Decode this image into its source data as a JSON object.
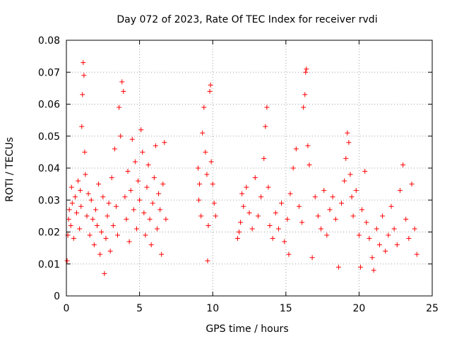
{
  "chart_data": {
    "type": "scatter",
    "title": "Day 072 of 2023, Rate Of TEC Index for receiver rvdi",
    "xlabel": "GPS time / hours",
    "ylabel": "ROTI / TECUs",
    "xlim": [
      0,
      25
    ],
    "ylim": [
      0,
      0.08
    ],
    "x_ticks": [
      0,
      5,
      10,
      15,
      20,
      25
    ],
    "x_tick_labels": [
      "0",
      "5",
      "10",
      "15",
      "20",
      "25"
    ],
    "y_ticks": [
      0,
      0.01,
      0.02,
      0.03,
      0.04,
      0.05,
      0.06,
      0.07,
      0.08
    ],
    "y_tick_labels": [
      "0",
      "0.01",
      "0.02",
      "0.03",
      "0.04",
      "0.05",
      "0.06",
      "0.07",
      "0.08"
    ],
    "grid": true,
    "marker": "plus",
    "color": "#ff0000",
    "series": [
      {
        "values_xy": [
          [
            0.05,
            0.011
          ],
          [
            0.1,
            0.019
          ],
          [
            0.15,
            0.024
          ],
          [
            0.2,
            0.027
          ],
          [
            0.3,
            0.022
          ],
          [
            0.35,
            0.034
          ],
          [
            0.4,
            0.029
          ],
          [
            0.5,
            0.018
          ],
          [
            0.6,
            0.031
          ],
          [
            0.7,
            0.026
          ],
          [
            0.8,
            0.036
          ],
          [
            0.9,
            0.021
          ],
          [
            0.95,
            0.033
          ],
          [
            1.0,
            0.028
          ],
          [
            1.05,
            0.053
          ],
          [
            1.1,
            0.063
          ],
          [
            1.15,
            0.073
          ],
          [
            1.2,
            0.069
          ],
          [
            1.25,
            0.045
          ],
          [
            1.3,
            0.038
          ],
          [
            1.4,
            0.025
          ],
          [
            1.5,
            0.032
          ],
          [
            1.6,
            0.019
          ],
          [
            1.7,
            0.03
          ],
          [
            1.8,
            0.024
          ],
          [
            1.9,
            0.016
          ],
          [
            2.0,
            0.027
          ],
          [
            2.1,
            0.022
          ],
          [
            2.2,
            0.035
          ],
          [
            2.3,
            0.013
          ],
          [
            2.4,
            0.02
          ],
          [
            2.5,
            0.031
          ],
          [
            2.6,
            0.007
          ],
          [
            2.7,
            0.018
          ],
          [
            2.8,
            0.025
          ],
          [
            2.9,
            0.029
          ],
          [
            3.0,
            0.014
          ],
          [
            3.1,
            0.037
          ],
          [
            3.2,
            0.022
          ],
          [
            3.3,
            0.046
          ],
          [
            3.4,
            0.028
          ],
          [
            3.5,
            0.019
          ],
          [
            3.6,
            0.059
          ],
          [
            3.7,
            0.05
          ],
          [
            3.8,
            0.067
          ],
          [
            3.9,
            0.064
          ],
          [
            4.0,
            0.031
          ],
          [
            4.1,
            0.024
          ],
          [
            4.2,
            0.039
          ],
          [
            4.3,
            0.017
          ],
          [
            4.4,
            0.033
          ],
          [
            4.5,
            0.049
          ],
          [
            4.6,
            0.027
          ],
          [
            4.7,
            0.042
          ],
          [
            4.8,
            0.021
          ],
          [
            4.9,
            0.036
          ],
          [
            5.0,
            0.03
          ],
          [
            5.1,
            0.052
          ],
          [
            5.2,
            0.045
          ],
          [
            5.3,
            0.026
          ],
          [
            5.4,
            0.019
          ],
          [
            5.5,
            0.034
          ],
          [
            5.6,
            0.041
          ],
          [
            5.7,
            0.024
          ],
          [
            5.8,
            0.016
          ],
          [
            5.9,
            0.029
          ],
          [
            6.0,
            0.037
          ],
          [
            6.1,
            0.047
          ],
          [
            6.2,
            0.021
          ],
          [
            6.3,
            0.032
          ],
          [
            6.4,
            0.027
          ],
          [
            6.5,
            0.013
          ],
          [
            6.6,
            0.035
          ],
          [
            6.7,
            0.048
          ],
          [
            6.8,
            0.024
          ],
          [
            9.0,
            0.04
          ],
          [
            9.05,
            0.03
          ],
          [
            9.1,
            0.035
          ],
          [
            9.2,
            0.025
          ],
          [
            9.3,
            0.051
          ],
          [
            9.4,
            0.059
          ],
          [
            9.5,
            0.045
          ],
          [
            9.6,
            0.038
          ],
          [
            9.65,
            0.011
          ],
          [
            9.7,
            0.022
          ],
          [
            9.8,
            0.064
          ],
          [
            9.85,
            0.066
          ],
          [
            9.9,
            0.042
          ],
          [
            10.0,
            0.035
          ],
          [
            10.1,
            0.029
          ],
          [
            10.2,
            0.025
          ],
          [
            11.7,
            0.018
          ],
          [
            11.8,
            0.02
          ],
          [
            11.9,
            0.023
          ],
          [
            12.0,
            0.032
          ],
          [
            12.1,
            0.028
          ],
          [
            12.3,
            0.034
          ],
          [
            12.5,
            0.026
          ],
          [
            12.7,
            0.021
          ],
          [
            12.9,
            0.037
          ],
          [
            13.1,
            0.025
          ],
          [
            13.3,
            0.031
          ],
          [
            13.5,
            0.043
          ],
          [
            13.6,
            0.053
          ],
          [
            13.7,
            0.059
          ],
          [
            13.8,
            0.034
          ],
          [
            13.9,
            0.022
          ],
          [
            14.1,
            0.018
          ],
          [
            14.3,
            0.026
          ],
          [
            14.5,
            0.021
          ],
          [
            14.7,
            0.029
          ],
          [
            14.9,
            0.017
          ],
          [
            15.1,
            0.024
          ],
          [
            15.2,
            0.013
          ],
          [
            15.3,
            0.032
          ],
          [
            15.5,
            0.04
          ],
          [
            15.7,
            0.046
          ],
          [
            15.9,
            0.028
          ],
          [
            16.1,
            0.023
          ],
          [
            16.2,
            0.059
          ],
          [
            16.3,
            0.063
          ],
          [
            16.35,
            0.07
          ],
          [
            16.4,
            0.071
          ],
          [
            16.5,
            0.047
          ],
          [
            16.6,
            0.041
          ],
          [
            16.8,
            0.012
          ],
          [
            17.0,
            0.031
          ],
          [
            17.2,
            0.025
          ],
          [
            17.4,
            0.021
          ],
          [
            17.6,
            0.033
          ],
          [
            17.8,
            0.019
          ],
          [
            18.0,
            0.027
          ],
          [
            18.2,
            0.031
          ],
          [
            18.4,
            0.024
          ],
          [
            18.6,
            0.009
          ],
          [
            18.8,
            0.029
          ],
          [
            19.0,
            0.036
          ],
          [
            19.1,
            0.043
          ],
          [
            19.2,
            0.051
          ],
          [
            19.3,
            0.048
          ],
          [
            19.4,
            0.038
          ],
          [
            19.5,
            0.031
          ],
          [
            19.6,
            0.025
          ],
          [
            19.8,
            0.033
          ],
          [
            20.0,
            0.019
          ],
          [
            20.1,
            0.009
          ],
          [
            20.2,
            0.027
          ],
          [
            20.4,
            0.039
          ],
          [
            20.5,
            0.023
          ],
          [
            20.7,
            0.018
          ],
          [
            20.9,
            0.012
          ],
          [
            21.0,
            0.008
          ],
          [
            21.2,
            0.021
          ],
          [
            21.4,
            0.016
          ],
          [
            21.6,
            0.025
          ],
          [
            21.8,
            0.014
          ],
          [
            22.0,
            0.019
          ],
          [
            22.2,
            0.028
          ],
          [
            22.4,
            0.021
          ],
          [
            22.6,
            0.016
          ],
          [
            22.8,
            0.033
          ],
          [
            23.0,
            0.041
          ],
          [
            23.2,
            0.024
          ],
          [
            23.4,
            0.018
          ],
          [
            23.6,
            0.035
          ],
          [
            23.8,
            0.021
          ],
          [
            23.95,
            0.013
          ]
        ]
      }
    ]
  }
}
